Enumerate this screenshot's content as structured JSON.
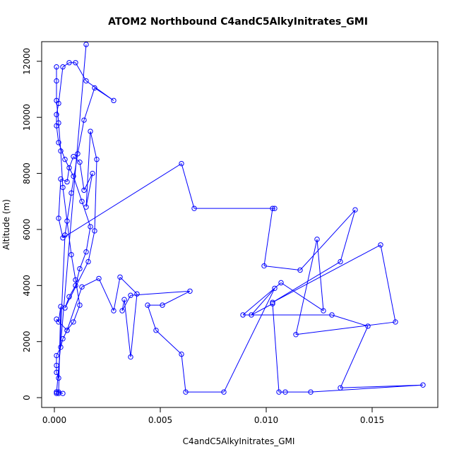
{
  "chart_data": {
    "type": "line",
    "title": "ATOM2 Northbound C4andC5AlkyInitrates_GMI",
    "xlabel": "C4andC5AlkyInitrates_GMI",
    "ylabel": "Altitude (m)",
    "xlim": [
      -0.0006,
      0.0181
    ],
    "ylim": [
      -350,
      12700
    ],
    "x_ticks": [
      0.0,
      0.005,
      0.01,
      0.015
    ],
    "x_tick_labels": [
      "0.000",
      "0.005",
      "0.010",
      "0.015"
    ],
    "y_ticks": [
      0,
      2000,
      4000,
      6000,
      8000,
      10000,
      12000
    ],
    "y_tick_labels": [
      "0",
      "2000",
      "4000",
      "6000",
      "8000",
      "10000",
      "12000"
    ],
    "grid": false,
    "line_color": "#0000ff",
    "marker": "open-circle",
    "series": [
      {
        "x": [
          0.0001,
          0.0001,
          0.0001,
          0.0002,
          0.0003,
          0.0004,
          0.0006,
          0.0008,
          0.001,
          0.0012,
          0.0009,
          0.0006,
          0.0004,
          0.0003,
          0.0001,
          0.0001,
          0.0001,
          0.0002,
          0.0005,
          0.0008,
          0.0011,
          0.0014,
          0.0019,
          0.0028,
          0.0015,
          0.001,
          0.0007,
          0.0004,
          0.0002,
          0.0001,
          0.0001,
          0.0002,
          0.0005,
          0.0009,
          0.0013,
          0.0017,
          0.0015,
          0.0012,
          0.001,
          0.0007,
          0.0005,
          0.0016,
          0.0019,
          0.002,
          0.0017,
          0.0015,
          0.0018,
          0.0014,
          0.0012,
          0.0009,
          0.0007,
          0.0006,
          0.0003,
          0.0002,
          0.0004,
          0.006,
          0.0066,
          0.0104,
          0.0103,
          0.0099,
          0.0116,
          0.0142,
          0.0135,
          0.0103,
          0.0154,
          0.0161,
          0.0114,
          0.0124,
          0.0127,
          0.0107,
          0.0089,
          0.0131,
          0.0148,
          0.0135,
          0.0174,
          0.0121,
          0.0109,
          0.0106,
          0.0103,
          0.0093,
          0.0104,
          0.008,
          0.0062,
          0.006,
          0.0048,
          0.0044,
          0.0051,
          0.0064,
          0.0036,
          0.0032,
          0.0033,
          0.0036,
          0.0039,
          0.0031,
          0.0028,
          0.0021,
          0.0013,
          0.0006,
          0.0001,
          0.0002,
          0.0003,
          0.0002,
          0.0002,
          0.0004,
          0.0001,
          0.0001,
          0.0001,
          0.0015
        ],
        "y": [
          11800,
          11300,
          10600,
          9800,
          8800,
          7500,
          6300,
          5100,
          4200,
          3300,
          2700,
          2400,
          2100,
          1800,
          1500,
          1150,
          900,
          700,
          5800,
          7300,
          8700,
          9900,
          11050,
          10600,
          11300,
          11950,
          11950,
          11800,
          10500,
          10100,
          9700,
          9100,
          8500,
          7900,
          7000,
          6100,
          5200,
          4600,
          4000,
          3600,
          3200,
          4850,
          5950,
          8500,
          9500,
          6800,
          8000,
          7400,
          8400,
          8600,
          8200,
          7700,
          7800,
          6400,
          5700,
          8350,
          6750,
          6750,
          6750,
          4700,
          4550,
          6700,
          4850,
          3400,
          5450,
          2700,
          2250,
          5650,
          3100,
          4100,
          2950,
          2950,
          2550,
          350,
          450,
          200,
          200,
          200,
          3350,
          2950,
          3900,
          200,
          200,
          1550,
          2400,
          3300,
          3300,
          3800,
          3650,
          3100,
          3500,
          1450,
          3700,
          4300,
          3100,
          4250,
          3950,
          2400,
          2800,
          2700,
          3250,
          150,
          200,
          150,
          200,
          200,
          150,
          12600
        ]
      }
    ]
  }
}
